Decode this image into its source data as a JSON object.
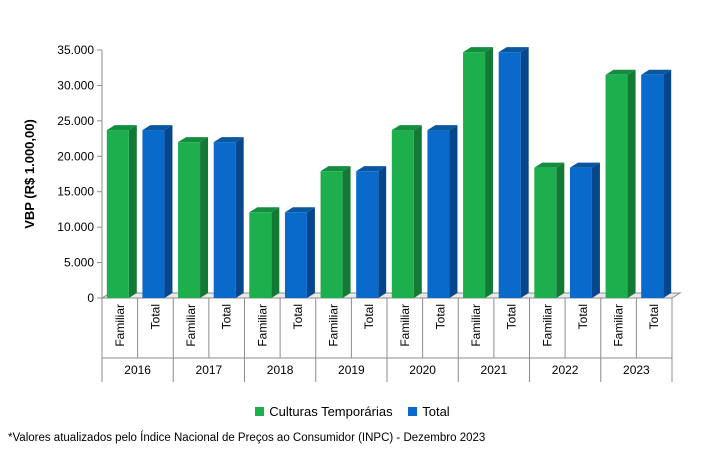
{
  "colors": {
    "familiar": "#1DAE4E",
    "familiar_side": "#127A34",
    "familiar_top": "#158D3F",
    "total": "#0A6ACB",
    "total_side": "#06468C",
    "total_top": "#08579F",
    "axis": "#8C8C8C"
  },
  "legend": [
    {
      "label": "Culturas Temporárias",
      "color": "#1DAE4E"
    },
    {
      "label": "Total",
      "color": "#0A6ACB"
    }
  ],
  "footnote": "*Valores atualizados pelo Índice Nacional de Preços ao Consumidor (INPC) - Dezembro 2023",
  "chart_data": {
    "type": "bar",
    "title": "",
    "ylabel": "VBP (R$ 1.000,00)",
    "xlabel": "",
    "ylim": [
      0,
      35000
    ],
    "yticks": [
      0,
      5000,
      10000,
      15000,
      20000,
      25000,
      30000,
      35000
    ],
    "ytick_labels": [
      "0",
      "5.000",
      "10.000",
      "15.000",
      "20.000",
      "25.000",
      "30.000",
      "35.000"
    ],
    "years": [
      "2016",
      "2017",
      "2018",
      "2019",
      "2020",
      "2021",
      "2022",
      "2023"
    ],
    "subcategories": [
      "Familiar",
      "Total"
    ],
    "series": [
      {
        "name": "Culturas Temporárias",
        "sub": "Familiar",
        "colorKey": "familiar",
        "values": [
          23700,
          22000,
          12100,
          17900,
          23700,
          34700,
          18400,
          31500
        ]
      },
      {
        "name": "Total",
        "sub": "Total",
        "colorKey": "total",
        "values": [
          23700,
          22000,
          12100,
          17900,
          23700,
          34700,
          18400,
          31500
        ]
      }
    ]
  }
}
